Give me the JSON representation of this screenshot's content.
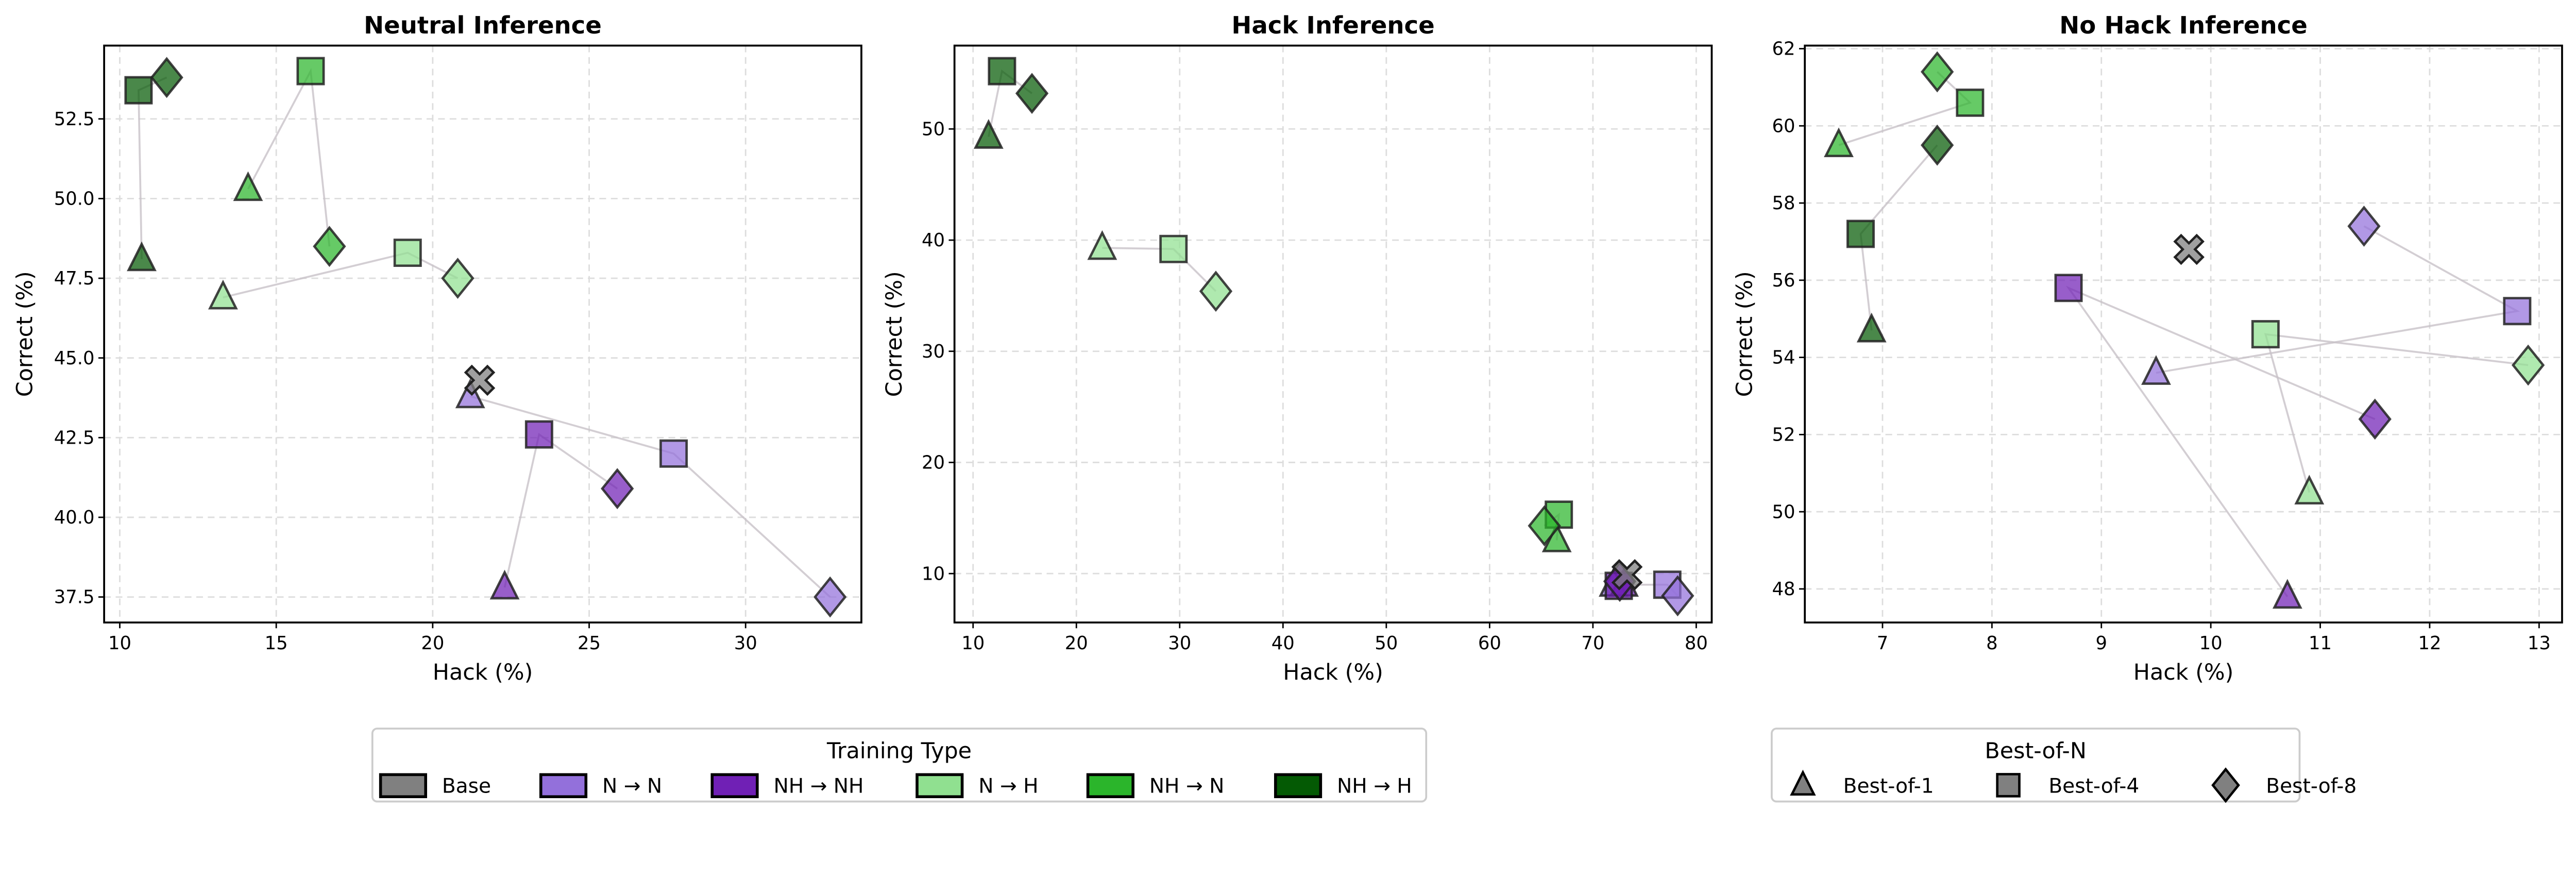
{
  "chart_data": {
    "type": "scatter",
    "legend_training": {
      "title": "Training Type",
      "placement": "bottom-center-left",
      "entries": [
        {
          "key": "base",
          "label": "Base",
          "color": "#808080"
        },
        {
          "key": "nn",
          "label": "N → N",
          "color": "#9370DB"
        },
        {
          "key": "nhnh",
          "label": "NH → NH",
          "color": "#7020B5"
        },
        {
          "key": "nh",
          "label": "N → H",
          "color": "#90E090"
        },
        {
          "key": "nhn",
          "label": "NH → N",
          "color": "#2BB52B"
        },
        {
          "key": "nhh",
          "label": "NH → H",
          "color": "#045A04"
        }
      ]
    },
    "legend_bon": {
      "title": "Best-of-N",
      "placement": "bottom-right",
      "entries": [
        {
          "key": "b1",
          "label": "Best-of-1",
          "marker": "triangle"
        },
        {
          "key": "b4",
          "label": "Best-of-4",
          "marker": "square"
        },
        {
          "key": "b8",
          "label": "Best-of-8",
          "marker": "diamond"
        }
      ]
    },
    "base_marker": "x",
    "grid": true,
    "panels": [
      {
        "title": "Neutral Inference",
        "xlabel": "Hack (%)",
        "ylabel": "Correct (%)",
        "xlim": [
          9.5,
          33.7
        ],
        "ylim": [
          36.7,
          54.8
        ],
        "xticks": [
          10,
          15,
          20,
          25,
          30
        ],
        "xtick_labels": [
          "10",
          "15",
          "20",
          "25",
          "30"
        ],
        "yticks": [
          37.5,
          40,
          42.5,
          45,
          47.5,
          50,
          52.5
        ],
        "ytick_labels": [
          "37.5",
          "40.0",
          "42.5",
          "45.0",
          "47.5",
          "50.0",
          "52.5"
        ],
        "base": [
          21.5,
          44.3
        ],
        "series": {
          "nn": [
            [
              21.2,
              43.8
            ],
            [
              27.7,
              42.0
            ],
            [
              32.7,
              37.5
            ]
          ],
          "nhnh": [
            [
              22.3,
              37.8
            ],
            [
              23.4,
              42.6
            ],
            [
              25.9,
              40.9
            ]
          ],
          "nh": [
            [
              13.3,
              46.9
            ],
            [
              19.2,
              48.3
            ],
            [
              20.8,
              47.5
            ]
          ],
          "nhn": [
            [
              14.1,
              50.3
            ],
            [
              16.1,
              54.0
            ],
            [
              16.7,
              48.5
            ]
          ],
          "nhh": [
            [
              10.7,
              48.1
            ],
            [
              10.6,
              53.4
            ],
            [
              11.5,
              53.8
            ]
          ]
        }
      },
      {
        "title": "Hack Inference",
        "xlabel": "Hack (%)",
        "ylabel": "Correct (%)",
        "xlim": [
          8.2,
          81.5
        ],
        "ylim": [
          5.6,
          57.5
        ],
        "xticks": [
          10,
          20,
          30,
          40,
          50,
          60,
          70,
          80
        ],
        "xtick_labels": [
          "10",
          "20",
          "30",
          "40",
          "50",
          "60",
          "70",
          "80"
        ],
        "yticks": [
          10,
          20,
          30,
          40,
          50
        ],
        "ytick_labels": [
          "10",
          "20",
          "30",
          "40",
          "50"
        ],
        "base": [
          73.3,
          9.9
        ],
        "series": {
          "nn": [
            [
              72.0,
              9.0
            ],
            [
              77.2,
              9.0
            ],
            [
              78.2,
              8.0
            ]
          ],
          "nhnh": [
            [
              73.0,
              9.0
            ],
            [
              72.5,
              8.9
            ],
            [
              72.6,
              9.3
            ]
          ],
          "nh": [
            [
              22.5,
              39.3
            ],
            [
              29.4,
              39.2
            ],
            [
              33.5,
              35.4
            ]
          ],
          "nhn": [
            [
              66.5,
              13.0
            ],
            [
              66.7,
              15.3
            ],
            [
              65.3,
              14.3
            ]
          ],
          "nhh": [
            [
              11.5,
              49.3
            ],
            [
              12.8,
              55.2
            ],
            [
              15.7,
              53.2
            ]
          ]
        }
      },
      {
        "title": "No Hack Inference",
        "xlabel": "Hack (%)",
        "ylabel": "Correct (%)",
        "xlim": [
          6.29,
          13.21
        ],
        "ylim": [
          47.13,
          62.08
        ],
        "xticks": [
          7,
          8,
          9,
          10,
          11,
          12,
          13
        ],
        "xtick_labels": [
          "7",
          "8",
          "9",
          "10",
          "11",
          "12",
          "13"
        ],
        "yticks": [
          48,
          50,
          52,
          54,
          56,
          58,
          60,
          62
        ],
        "ytick_labels": [
          "48",
          "50",
          "52",
          "54",
          "56",
          "58",
          "60",
          "62"
        ],
        "base": [
          9.8,
          56.8
        ],
        "series": {
          "nn": [
            [
              9.5,
              53.6
            ],
            [
              12.8,
              55.2
            ],
            [
              11.4,
              57.4
            ]
          ],
          "nhnh": [
            [
              10.7,
              47.8
            ],
            [
              8.7,
              55.8
            ],
            [
              11.5,
              52.4
            ]
          ],
          "nh": [
            [
              10.9,
              50.5
            ],
            [
              10.5,
              54.6
            ],
            [
              12.9,
              53.8
            ]
          ],
          "nhn": [
            [
              6.6,
              59.5
            ],
            [
              7.8,
              60.6
            ],
            [
              7.5,
              61.4
            ]
          ],
          "nhh": [
            [
              6.9,
              54.7
            ],
            [
              6.8,
              57.2
            ],
            [
              7.5,
              59.5
            ]
          ]
        }
      }
    ]
  }
}
